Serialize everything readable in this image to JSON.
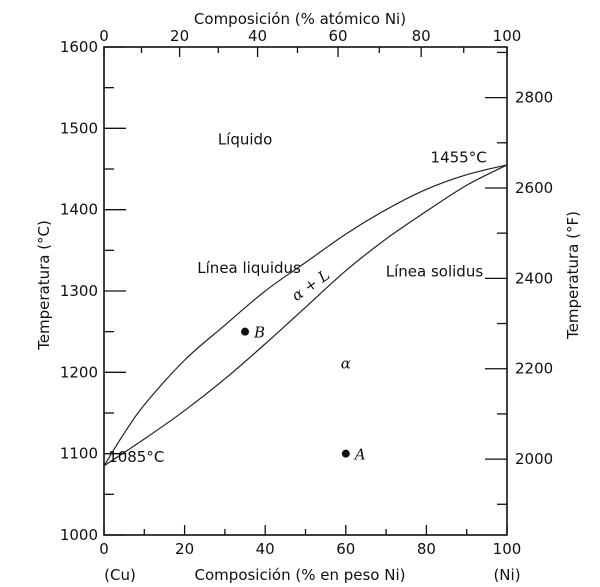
{
  "chart_data": {
    "type": "line",
    "title": "",
    "axes": {
      "bottom": {
        "label": "Composición (% en peso Ni)",
        "range": [
          0,
          100
        ],
        "ticks": [
          0,
          20,
          40,
          60,
          80,
          100
        ],
        "tick_labels": [
          "0",
          "20",
          "40",
          "60",
          "80",
          "100"
        ],
        "end_labels": [
          "(Cu)",
          "(Ni)"
        ]
      },
      "top": {
        "label": "Composición (% atómico Ni)",
        "range": [
          0,
          100
        ],
        "ticks": [
          0,
          20,
          40,
          60,
          80,
          100
        ],
        "tick_labels": [
          "0",
          "20",
          "40",
          "60",
          "80",
          "100"
        ]
      },
      "left": {
        "label": "Temperatura (°C)",
        "range": [
          1000,
          1600
        ],
        "ticks": [
          1000,
          1100,
          1200,
          1300,
          1400,
          1500,
          1600
        ],
        "tick_labels": [
          "1000",
          "1100",
          "1200",
          "1300",
          "1400",
          "1500",
          "1600"
        ]
      },
      "right": {
        "label": "Temperatura (°F)",
        "ticks": [
          2000,
          2200,
          2400,
          2600,
          2800
        ],
        "tick_labels": [
          "2000",
          "2200",
          "2400",
          "2600",
          "2800"
        ]
      }
    },
    "grid": false,
    "series": [
      {
        "name": "Línea liquidus",
        "x": [
          0,
          5,
          10,
          20,
          30,
          40,
          50,
          60,
          70,
          80,
          90,
          100
        ],
        "y": [
          1085,
          1125,
          1160,
          1215,
          1258,
          1300,
          1335,
          1370,
          1400,
          1425,
          1443,
          1455
        ]
      },
      {
        "name": "Línea solidus",
        "x": [
          0,
          10,
          20,
          30,
          40,
          50,
          60,
          70,
          80,
          90,
          100
        ],
        "y": [
          1085,
          1118,
          1153,
          1192,
          1235,
          1280,
          1325,
          1364,
          1398,
          1430,
          1455
        ]
      }
    ],
    "points": [
      {
        "label": "B",
        "x": 35,
        "y": 1250
      },
      {
        "label": "A",
        "x": 60,
        "y": 1100
      }
    ],
    "annotations": [
      {
        "text": "Líquido",
        "x": 35,
        "y": 1480
      },
      {
        "text": "1455°C",
        "x": 88,
        "y": 1458
      },
      {
        "text": "Línea liquidus",
        "x": 36,
        "y": 1322
      },
      {
        "text": "α + L",
        "x": 52,
        "y": 1302
      },
      {
        "text": "Línea solidus",
        "x": 82,
        "y": 1318
      },
      {
        "text": "α",
        "x": 60,
        "y": 1205
      },
      {
        "text": "1085°C",
        "x": 8,
        "y": 1090
      }
    ]
  }
}
